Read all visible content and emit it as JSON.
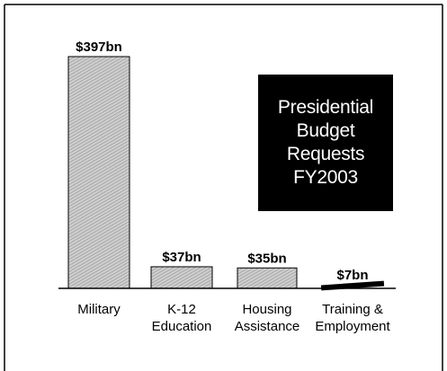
{
  "chart_data": {
    "type": "bar",
    "title_lines": [
      "Presidential",
      "Budget",
      "Requests",
      "FY2003"
    ],
    "categories": [
      [
        "Military"
      ],
      [
        "K-12",
        "Education"
      ],
      [
        "Housing",
        "Assistance"
      ],
      [
        "Training &",
        "Employment"
      ]
    ],
    "values": [
      397,
      37,
      35,
      7
    ],
    "value_labels": [
      "$397bn",
      "$37bn",
      "$35bn",
      "$7bn"
    ],
    "unit": "$bn",
    "ylim": [
      0,
      397
    ],
    "grid": false
  },
  "colors": {
    "bar_light": "#c8c8c8",
    "bar_dark": "#8a8a8a",
    "ink": "#000000",
    "background": "#ffffff"
  }
}
